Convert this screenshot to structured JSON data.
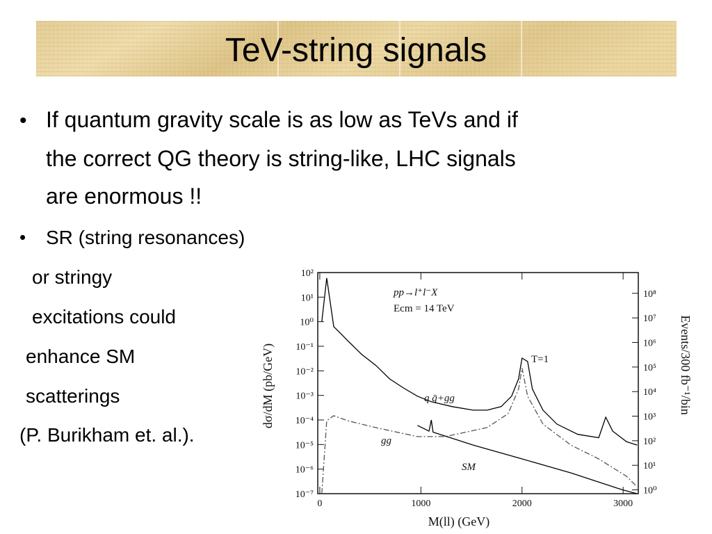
{
  "header": {
    "title": "TeV-string signals"
  },
  "bullets": [
    {
      "lines": [
        "If quantum gravity scale is as low as TeVs and if",
        "the correct QG theory is string-like, LHC signals",
        "are enormous !!"
      ]
    },
    {
      "lines": [
        "SR (string resonances)",
        "or stringy",
        "excitations could",
        "enhance SM",
        "scatterings",
        "(P. Burikham et. al.)."
      ]
    }
  ],
  "chart_data": {
    "type": "line",
    "y_label": "dσ/dM (pb/GeV)",
    "y2_label": "Events/300 fb⁻¹/bin",
    "x_label": "M(ll) (GeV)",
    "annotations": [
      "pp→l⁺l⁻X",
      "Ecm = 14 TeV",
      "T=1"
    ],
    "xlim": [
      -20,
      3150
    ],
    "xticks": [
      0,
      1000,
      2000,
      3000
    ],
    "ylim": [
      1e-07,
      100
    ],
    "yscale": "log",
    "yticks": [
      {
        "value": 1e-07,
        "label": "10⁻⁷"
      },
      {
        "value": 1e-06,
        "label": "10⁻⁶"
      },
      {
        "value": 1e-05,
        "label": "10⁻⁵"
      },
      {
        "value": 0.0001,
        "label": "10⁻⁴"
      },
      {
        "value": 0.001,
        "label": "10⁻³"
      },
      {
        "value": 0.01,
        "label": "10⁻²"
      },
      {
        "value": 0.1,
        "label": "10⁻¹"
      },
      {
        "value": 1,
        "label": "10⁰"
      },
      {
        "value": 10,
        "label": "10¹"
      },
      {
        "value": 100,
        "label": "10²"
      }
    ],
    "y2lim": [
      0.7,
      700000000.0
    ],
    "y2ticks": [
      {
        "value": 1,
        "label": "10⁰"
      },
      {
        "value": 10,
        "label": "10¹"
      },
      {
        "value": 100,
        "label": "10²"
      },
      {
        "value": 1000,
        "label": "10³"
      },
      {
        "value": 10000,
        "label": "10⁴"
      },
      {
        "value": 100000,
        "label": "10⁵"
      },
      {
        "value": 1000000,
        "label": "10⁶"
      },
      {
        "value": 10000000,
        "label": "10⁷"
      },
      {
        "value": 100000000,
        "label": "10⁸"
      }
    ],
    "grid": false,
    "series": [
      {
        "name": "q q̄+gg",
        "color": "#000000",
        "linestyle": "solid",
        "x": [
          20,
          69,
          138,
          207,
          276,
          414,
          552,
          690,
          828,
          966,
          1103,
          1310,
          1517,
          1655,
          1793,
          1897,
          1966,
          2000,
          2055,
          2103,
          2207,
          2345,
          2552,
          2759,
          2828,
          2897,
          3034,
          3138
        ],
        "values": [
          1,
          60,
          0.63,
          0.33,
          0.17,
          0.047,
          0.017,
          0.0047,
          0.002,
          0.00093,
          0.00055,
          0.00035,
          0.00025,
          0.00025,
          0.00035,
          0.00093,
          0.0047,
          0.033,
          0.024,
          0.0018,
          0.00025,
          6.8e-05,
          2.6e-05,
          1.9e-05,
          0.00013,
          3.5e-05,
          1.3e-05,
          9.5e-06
        ]
      },
      {
        "name": "gg",
        "color": "#555555",
        "linestyle": "dashdot",
        "x": [
          20,
          69,
          138,
          276,
          552,
          966,
          1241,
          1655,
          1862,
          1966,
          2000,
          2055,
          2207,
          2483,
          2759,
          3034,
          3138
        ],
        "values": [
          1e-07,
          9.3e-05,
          0.00015,
          9.3e-05,
          4.9e-05,
          2.1e-05,
          2.1e-05,
          4.9e-05,
          0.00018,
          0.0018,
          0.013,
          0.00093,
          6.8e-05,
          9.5e-06,
          2.6e-06,
          5.1e-07,
          1.9e-07
        ]
      },
      {
        "name": "SM",
        "color": "#000000",
        "linestyle": "solid",
        "x": [
          966,
          1080,
          1103,
          1120,
          1517,
          2000,
          2483,
          3000,
          3138
        ],
        "values": [
          6e-05,
          3.5e-05,
          0.0001,
          3.2e-05,
          9.5e-06,
          2.6e-06,
          7e-07,
          1.4e-07,
          1e-07
        ]
      }
    ]
  }
}
